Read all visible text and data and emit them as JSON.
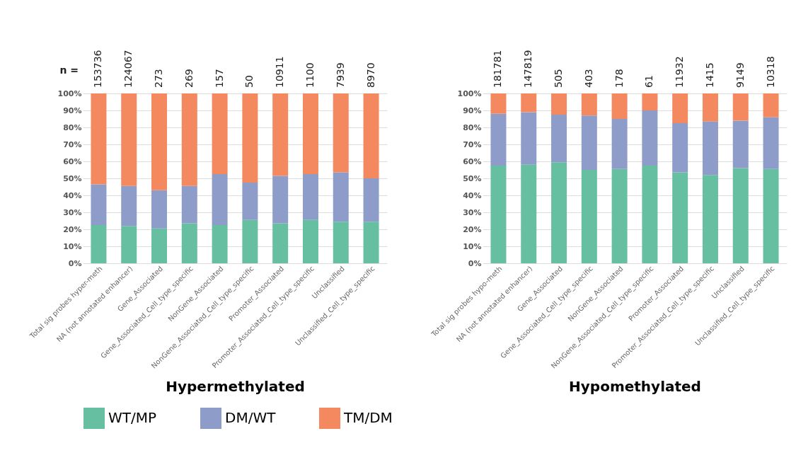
{
  "chart_data": [
    {
      "type": "bar",
      "stacked": true,
      "xlabel": "Hypermethylated",
      "categories": [
        "Total sig probes hyper-meth",
        "NA (not annotated enhancer)",
        "Gene_Associated",
        "Gene_Associated_Cell_type_specific",
        "NonGene_Associated",
        "NonGene_Associated_Cell_type_specific",
        "Promoter_Associated",
        "Promoter_Associated_Cell_type_specific",
        "Unclassified",
        "Unclassified_Cell_type_specific"
      ],
      "series": [
        {
          "name": "WT/MP",
          "color": "#66bfa0",
          "values": [
            22.5,
            22,
            20.5,
            23.5,
            22.5,
            25.5,
            23.5,
            25.5,
            24.5,
            24.5
          ]
        },
        {
          "name": "DM/WT",
          "color": "#8d9cc8",
          "values": [
            24,
            23.5,
            22.5,
            22,
            30,
            22,
            28,
            27,
            29,
            25.5
          ]
        },
        {
          "name": "TM/DM",
          "color": "#f4885f",
          "values": [
            53.5,
            54.5,
            57,
            54.5,
            47.5,
            52.5,
            48.5,
            47.5,
            46.5,
            50
          ]
        }
      ],
      "ylim": [
        0,
        100
      ],
      "yticks": [
        {
          "value": 0,
          "label": "0%"
        },
        {
          "value": 10,
          "label": "10%"
        },
        {
          "value": 20,
          "label": "20%"
        },
        {
          "value": 30,
          "label": "30%"
        },
        {
          "value": 40,
          "label": "40%"
        },
        {
          "value": 50,
          "label": "50%"
        },
        {
          "value": 60,
          "label": "60%"
        },
        {
          "value": 70,
          "label": "70%"
        },
        {
          "value": 80,
          "label": "80%"
        },
        {
          "value": 90,
          "label": "90%"
        },
        {
          "value": 100,
          "label": "100%"
        }
      ],
      "grid": "y",
      "legend": "bottom",
      "annotations": [
        "n =",
        "153736",
        "124067",
        "273",
        "269",
        "157",
        "50",
        "10911",
        "1100",
        "7939",
        "8970"
      ]
    },
    {
      "type": "bar",
      "stacked": true,
      "xlabel": "Hypomethylated",
      "categories": [
        "Total sig probes hypo-meth",
        "NA (not annotated enhancer)",
        "Gene_Associated",
        "Gene_Associated_Cell_type_specific",
        "NonGene_Associated",
        "NonGene_Associated_Cell_type_specific",
        "Promoter_Associated",
        "Promoter_Associated_Cell_type_specific",
        "Unclassified",
        "Unclassified_Cell_type_specific"
      ],
      "series": [
        {
          "name": "WT/MP",
          "color": "#66bfa0",
          "values": [
            57.5,
            58,
            59.5,
            55,
            55.5,
            57.5,
            53.5,
            52,
            56,
            55.5
          ]
        },
        {
          "name": "DM/WT",
          "color": "#8d9cc8",
          "values": [
            30.5,
            31,
            28,
            32,
            29.5,
            32.5,
            29,
            31.5,
            28,
            30.5
          ]
        },
        {
          "name": "TM/DM",
          "color": "#f4885f",
          "values": [
            12,
            11,
            12.5,
            13,
            15,
            10,
            17.5,
            16.5,
            16,
            14
          ]
        }
      ],
      "ylim": [
        0,
        100
      ],
      "yticks": [
        {
          "value": 0,
          "label": "0%"
        },
        {
          "value": 10,
          "label": "10%"
        },
        {
          "value": 20,
          "label": "20%"
        },
        {
          "value": 30,
          "label": "30%"
        },
        {
          "value": 40,
          "label": "40%"
        },
        {
          "value": 50,
          "label": "50%"
        },
        {
          "value": 60,
          "label": "60%"
        },
        {
          "value": 70,
          "label": "70%"
        },
        {
          "value": 80,
          "label": "80%"
        },
        {
          "value": 90,
          "label": "90%"
        },
        {
          "value": 100,
          "label": "100%"
        }
      ],
      "grid": "y",
      "legend": "bottom",
      "annotations": [
        "181781",
        "147819",
        "505",
        "403",
        "178",
        "61",
        "11932",
        "1415",
        "9149",
        "10318"
      ]
    }
  ]
}
